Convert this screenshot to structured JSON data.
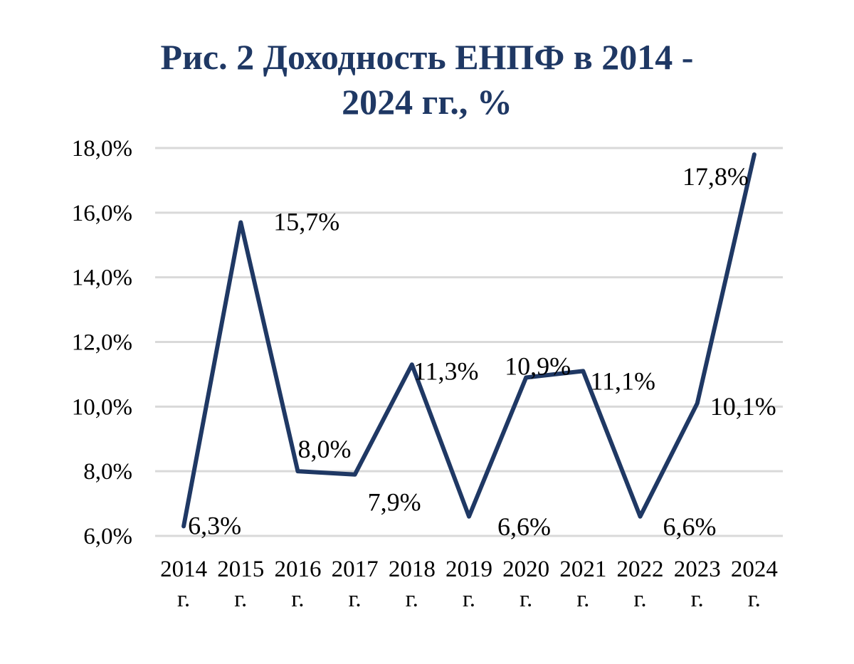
{
  "chart_data": {
    "type": "line",
    "title_lines": [
      "Рис. 2 Доходность ЕНПФ в 2014 -",
      "2024 гг., %"
    ],
    "categories": [
      [
        "2014",
        "г."
      ],
      [
        "2015",
        "г."
      ],
      [
        "2016",
        "г."
      ],
      [
        "2017",
        "г."
      ],
      [
        "2018",
        "г."
      ],
      [
        "2019",
        "г."
      ],
      [
        "2020",
        "г."
      ],
      [
        "2021",
        "г."
      ],
      [
        "2022",
        "г."
      ],
      [
        "2023",
        "г."
      ],
      [
        "2024",
        "г."
      ]
    ],
    "series": [
      {
        "values": [
          6.3,
          15.7,
          8.0,
          7.9,
          11.3,
          6.6,
          10.9,
          11.1,
          6.6,
          10.1,
          17.8
        ],
        "data_labels": [
          "6,3%",
          "15,7%",
          "8,0%",
          "7,9%",
          "11,3%",
          "6,6%",
          "10,9%",
          "11,1%",
          "6,6%",
          "10,1%",
          "17,8%"
        ]
      }
    ],
    "y_ticks": [
      6,
      8,
      10,
      12,
      14,
      16,
      18
    ],
    "y_tick_labels": [
      "6,0%",
      "8,0%",
      "10,0%",
      "12,0%",
      "14,0%",
      "16,0%",
      "18,0%"
    ],
    "ylim": [
      6,
      18
    ],
    "grid": true,
    "legend": "none",
    "colors": {
      "line": "#1f3864",
      "title": "#1f3864",
      "grid": "#d9d9d9",
      "text": "#000000"
    }
  }
}
